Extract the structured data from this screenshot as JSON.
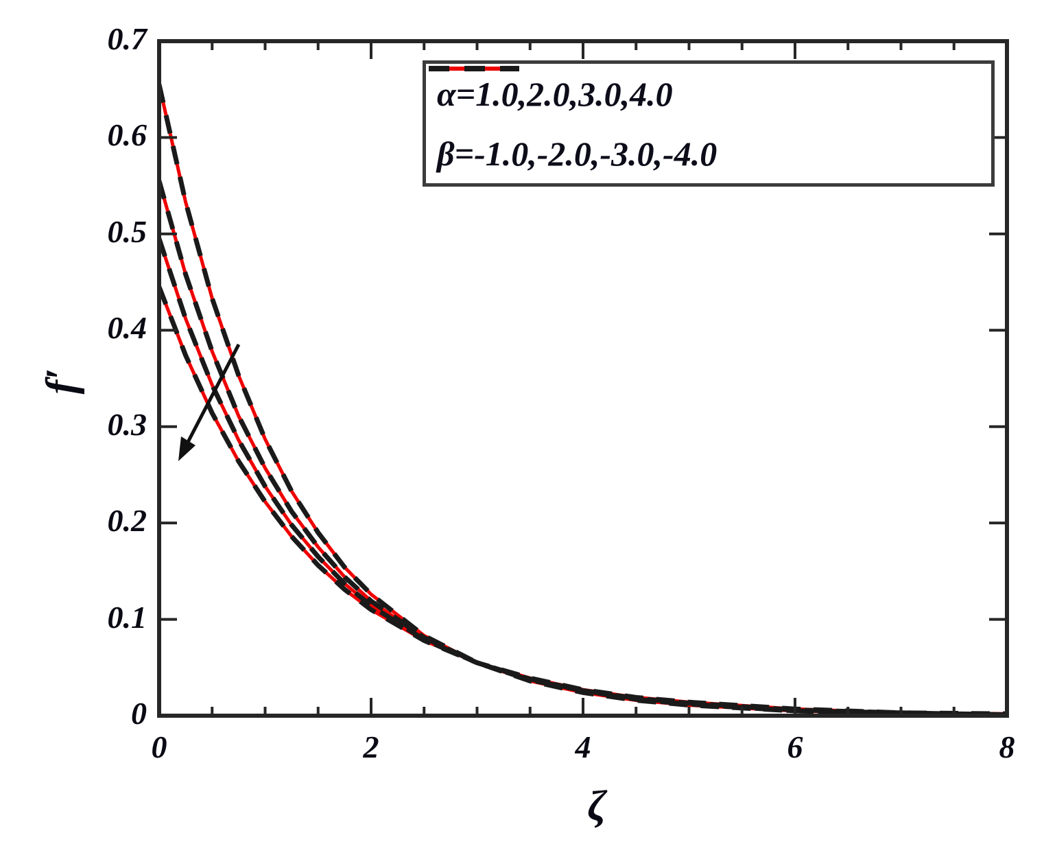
{
  "figure": {
    "xlabel": "ζ",
    "ylabel": "f′",
    "x_tick_labels": [
      "0",
      "2",
      "4",
      "6",
      "8"
    ],
    "y_tick_labels": [
      "0",
      "0.1",
      "0.2",
      "0.3",
      "0.4",
      "0.5",
      "0.6",
      "0.7"
    ]
  },
  "legend": {
    "position": "top-right-inside",
    "entries": [
      {
        "label": "α=1.0,2.0,3.0,4.0",
        "color": "#ee0000",
        "dash": "solid"
      },
      {
        "label": "β=-1.0,-2.0,-3.0,-4.0",
        "color": "#1a1a1a",
        "dash": "dashed"
      }
    ]
  },
  "annotation": {
    "type": "arrow",
    "direction": "down-left",
    "meaning": "f′ decreases as α increases and β decreases"
  },
  "colors": {
    "alpha_series": "#ee0000",
    "beta_series": "#1a1a1a",
    "axis": "#262626",
    "background": "#ffffff"
  },
  "chart_data": {
    "type": "line",
    "title": "",
    "xlabel": "ζ",
    "ylabel": "f′",
    "xlim": [
      0,
      8
    ],
    "ylim": [
      0,
      0.7
    ],
    "grid": false,
    "legend_position": "top-right inside axes",
    "x": [
      0,
      0.25,
      0.5,
      0.75,
      1,
      1.25,
      1.5,
      1.75,
      2,
      2.5,
      3,
      3.5,
      4,
      4.5,
      5,
      6,
      7,
      8
    ],
    "series": [
      {
        "name": "α=1.0",
        "color": "#ee0000",
        "style": "solid",
        "values": [
          0.655,
          0.533,
          0.433,
          0.353,
          0.287,
          0.233,
          0.19,
          0.154,
          0.126,
          0.083,
          0.055,
          0.036,
          0.024,
          0.016,
          0.011,
          0.005,
          0.002,
          0.001
        ]
      },
      {
        "name": "α=2.0",
        "color": "#ee0000",
        "style": "solid",
        "values": [
          0.555,
          0.458,
          0.378,
          0.311,
          0.257,
          0.212,
          0.175,
          0.144,
          0.119,
          0.081,
          0.055,
          0.037,
          0.026,
          0.017,
          0.012,
          0.005,
          0.003,
          0.001
        ]
      },
      {
        "name": "α=3.0",
        "color": "#ee0000",
        "style": "solid",
        "values": [
          0.495,
          0.412,
          0.343,
          0.286,
          0.238,
          0.198,
          0.165,
          0.137,
          0.114,
          0.079,
          0.055,
          0.038,
          0.026,
          0.018,
          0.013,
          0.006,
          0.003,
          0.001
        ]
      },
      {
        "name": "α=4.0",
        "color": "#ee0000",
        "style": "solid",
        "values": [
          0.445,
          0.374,
          0.314,
          0.264,
          0.222,
          0.186,
          0.156,
          0.131,
          0.11,
          0.078,
          0.055,
          0.039,
          0.027,
          0.019,
          0.014,
          0.007,
          0.003,
          0.002
        ]
      },
      {
        "name": "β=-1.0",
        "color": "#1a1a1a",
        "style": "dashed",
        "values": [
          0.655,
          0.533,
          0.433,
          0.353,
          0.287,
          0.233,
          0.19,
          0.154,
          0.126,
          0.083,
          0.055,
          0.036,
          0.024,
          0.016,
          0.011,
          0.005,
          0.002,
          0.001
        ]
      },
      {
        "name": "β=-2.0",
        "color": "#1a1a1a",
        "style": "dashed",
        "values": [
          0.555,
          0.458,
          0.378,
          0.311,
          0.257,
          0.212,
          0.175,
          0.144,
          0.119,
          0.081,
          0.055,
          0.037,
          0.026,
          0.017,
          0.012,
          0.005,
          0.003,
          0.001
        ]
      },
      {
        "name": "β=-3.0",
        "color": "#1a1a1a",
        "style": "dashed",
        "values": [
          0.495,
          0.412,
          0.343,
          0.286,
          0.238,
          0.198,
          0.165,
          0.137,
          0.114,
          0.079,
          0.055,
          0.038,
          0.026,
          0.018,
          0.013,
          0.006,
          0.003,
          0.001
        ]
      },
      {
        "name": "β=-4.0",
        "color": "#1a1a1a",
        "style": "dashed",
        "values": [
          0.445,
          0.374,
          0.314,
          0.264,
          0.222,
          0.186,
          0.156,
          0.131,
          0.11,
          0.078,
          0.055,
          0.039,
          0.027,
          0.019,
          0.014,
          0.007,
          0.003,
          0.002
        ]
      }
    ],
    "x_ticks_major": [
      0,
      2,
      4,
      6,
      8
    ],
    "x_ticks_minor": [
      0.5,
      1,
      1.5,
      2.5,
      3,
      3.5,
      4.5,
      5,
      5.5,
      6.5,
      7,
      7.5
    ],
    "y_ticks_major": [
      0,
      0.1,
      0.2,
      0.3,
      0.4,
      0.5,
      0.6,
      0.7
    ]
  }
}
